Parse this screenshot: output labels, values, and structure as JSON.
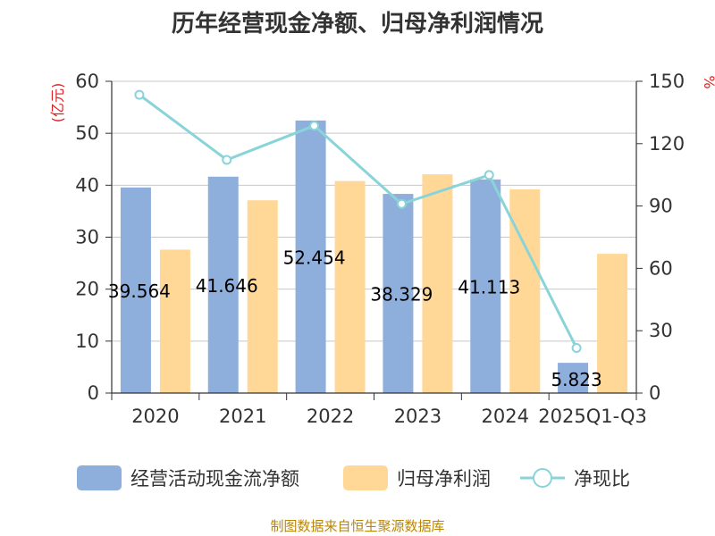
{
  "title": "历年经营现金净额、归母净利润情况",
  "source": "制图数据来自恒生聚源数据库",
  "chart_data": {
    "type": "bar",
    "categories": [
      "2020",
      "2021",
      "2022",
      "2023",
      "2024",
      "2025Q1-Q3"
    ],
    "series": [
      {
        "name": "经营活动现金流净额",
        "kind": "bar",
        "axis": "left",
        "color": "#8eaedc",
        "values": [
          39.564,
          41.646,
          52.454,
          38.329,
          41.113,
          5.823
        ]
      },
      {
        "name": "归母净利润",
        "kind": "bar",
        "axis": "left",
        "color": "#ffd898",
        "values": [
          27.6,
          37.1,
          40.8,
          42.1,
          39.2,
          26.8
        ]
      },
      {
        "name": "净现比",
        "kind": "line",
        "axis": "right",
        "color": "#88d4d8",
        "values": [
          143.5,
          112.2,
          128.6,
          91.0,
          104.9,
          21.7
        ]
      }
    ],
    "data_labels": [
      "39.564",
      "41.646",
      "52.454",
      "38.329",
      "41.113",
      "5.823"
    ],
    "y_left": {
      "label": "(亿元)",
      "min": 0,
      "max": 60,
      "ticks": [
        "0",
        "10",
        "20",
        "30",
        "40",
        "50",
        "60"
      ]
    },
    "y_right": {
      "label": "%",
      "min": 0,
      "max": 150,
      "ticks": [
        "0",
        "30",
        "60",
        "90",
        "120",
        "150"
      ]
    },
    "grid": true,
    "legend": "bottom"
  }
}
